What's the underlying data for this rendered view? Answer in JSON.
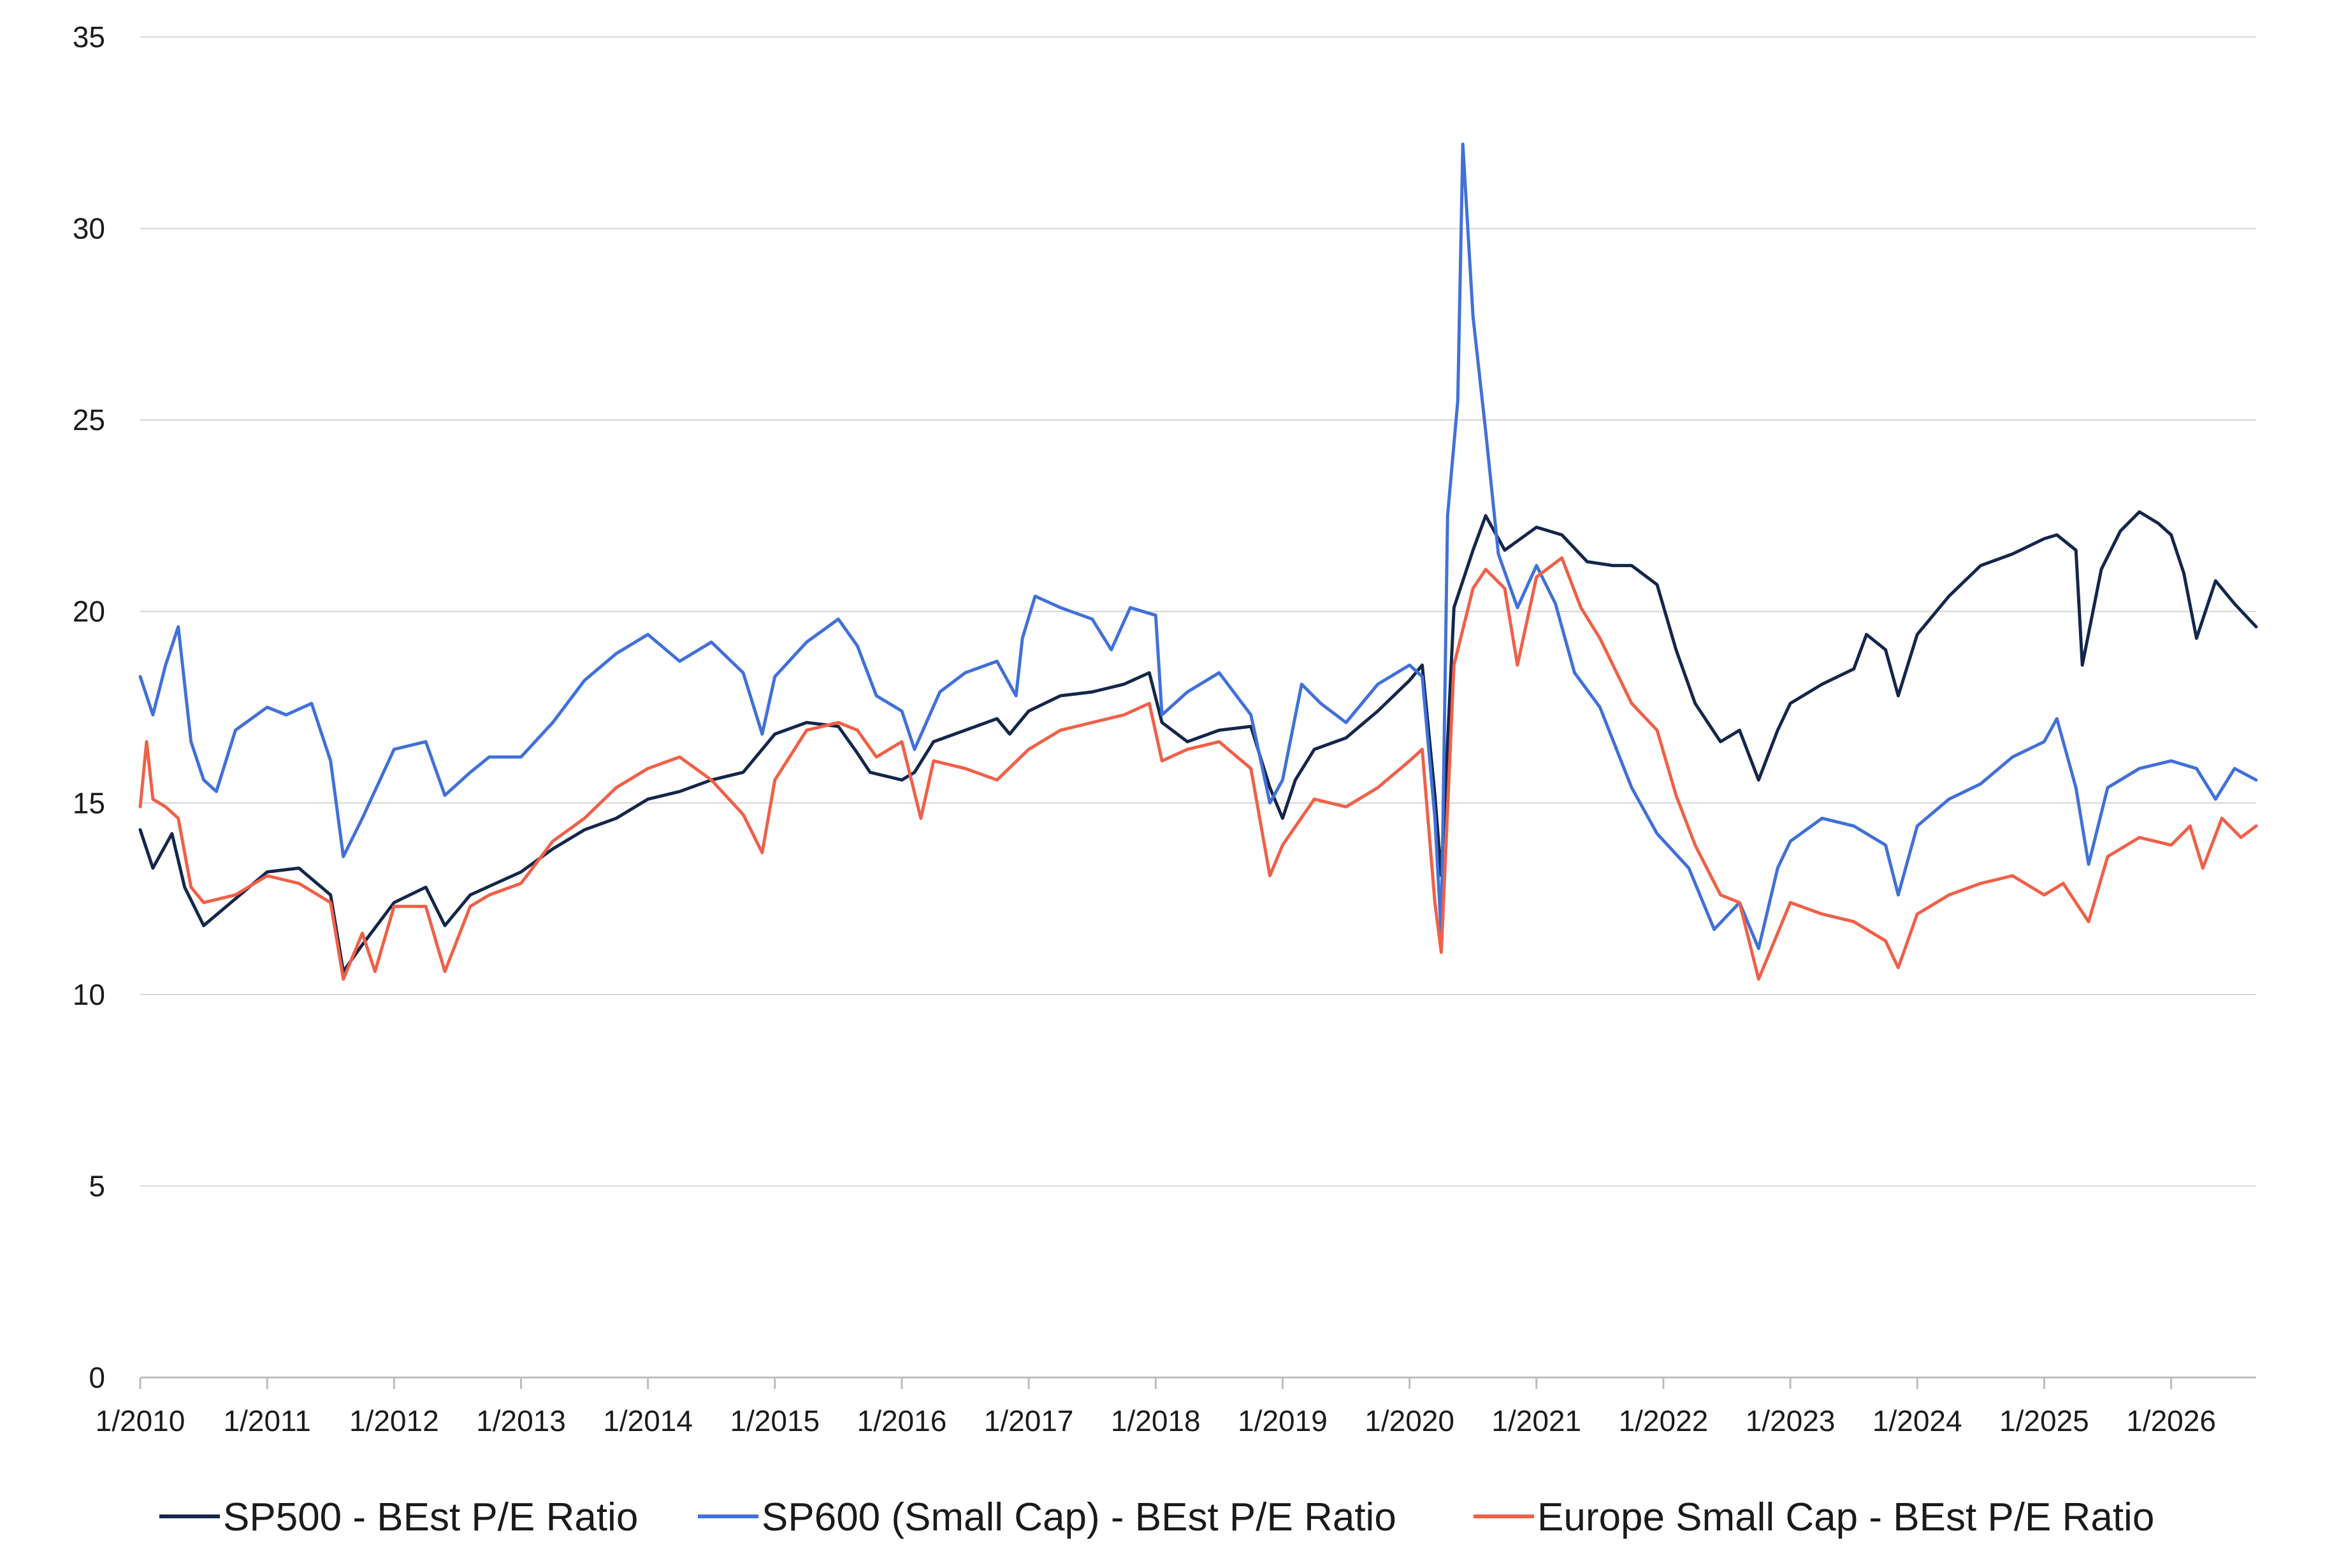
{
  "chart_data": {
    "type": "line",
    "title": "",
    "xlabel": "",
    "ylabel": "",
    "ylim": [
      0,
      35
    ],
    "yticks": [
      "0",
      "5",
      "10",
      "15",
      "20",
      "25",
      "30",
      "35"
    ],
    "xticks": [
      "1/2010",
      "1/2011",
      "1/2012",
      "1/2013",
      "1/2014",
      "1/2015",
      "1/2016",
      "1/2017",
      "1/2018",
      "1/2019",
      "1/2020",
      "1/2021",
      "1/2022",
      "1/2023",
      "1/2024",
      "1/2025",
      "1/2026"
    ],
    "x_range": [
      2010.0,
      2026.67
    ],
    "grid": "horizontal",
    "legend_position": "bottom",
    "series": [
      {
        "name": "SP500 - BEst P/E Ratio",
        "color": "#14264a",
        "points": [
          [
            2010.0,
            14.3
          ],
          [
            2010.1,
            13.3
          ],
          [
            2010.25,
            14.2
          ],
          [
            2010.35,
            12.8
          ],
          [
            2010.5,
            11.8
          ],
          [
            2010.75,
            12.5
          ],
          [
            2011.0,
            13.2
          ],
          [
            2011.25,
            13.3
          ],
          [
            2011.5,
            12.6
          ],
          [
            2011.6,
            10.6
          ],
          [
            2011.75,
            11.3
          ],
          [
            2012.0,
            12.4
          ],
          [
            2012.25,
            12.8
          ],
          [
            2012.4,
            11.8
          ],
          [
            2012.6,
            12.6
          ],
          [
            2013.0,
            13.2
          ],
          [
            2013.25,
            13.8
          ],
          [
            2013.5,
            14.3
          ],
          [
            2013.75,
            14.6
          ],
          [
            2014.0,
            15.1
          ],
          [
            2014.25,
            15.3
          ],
          [
            2014.5,
            15.6
          ],
          [
            2014.75,
            15.8
          ],
          [
            2015.0,
            16.8
          ],
          [
            2015.25,
            17.1
          ],
          [
            2015.5,
            17.0
          ],
          [
            2015.65,
            16.3
          ],
          [
            2015.75,
            15.8
          ],
          [
            2016.0,
            15.6
          ],
          [
            2016.1,
            15.8
          ],
          [
            2016.25,
            16.6
          ],
          [
            2016.5,
            16.9
          ],
          [
            2016.75,
            17.2
          ],
          [
            2016.85,
            16.8
          ],
          [
            2017.0,
            17.4
          ],
          [
            2017.25,
            17.8
          ],
          [
            2017.5,
            17.9
          ],
          [
            2017.75,
            18.1
          ],
          [
            2017.95,
            18.4
          ],
          [
            2018.05,
            17.1
          ],
          [
            2018.25,
            16.6
          ],
          [
            2018.5,
            16.9
          ],
          [
            2018.75,
            17.0
          ],
          [
            2018.9,
            15.4
          ],
          [
            2019.0,
            14.6
          ],
          [
            2019.1,
            15.6
          ],
          [
            2019.25,
            16.4
          ],
          [
            2019.5,
            16.7
          ],
          [
            2019.75,
            17.4
          ],
          [
            2020.0,
            18.2
          ],
          [
            2020.1,
            18.6
          ],
          [
            2020.2,
            15.2
          ],
          [
            2020.25,
            13.1
          ],
          [
            2020.35,
            20.1
          ],
          [
            2020.5,
            21.6
          ],
          [
            2020.6,
            22.5
          ],
          [
            2020.75,
            21.6
          ],
          [
            2021.0,
            22.2
          ],
          [
            2021.2,
            22.0
          ],
          [
            2021.4,
            21.3
          ],
          [
            2021.6,
            21.2
          ],
          [
            2021.75,
            21.2
          ],
          [
            2021.95,
            20.7
          ],
          [
            2022.1,
            19.0
          ],
          [
            2022.25,
            17.6
          ],
          [
            2022.45,
            16.6
          ],
          [
            2022.6,
            16.9
          ],
          [
            2022.75,
            15.6
          ],
          [
            2022.9,
            16.9
          ],
          [
            2023.0,
            17.6
          ],
          [
            2023.25,
            18.1
          ],
          [
            2023.5,
            18.5
          ],
          [
            2023.6,
            19.4
          ],
          [
            2023.75,
            19.0
          ],
          [
            2023.85,
            17.8
          ],
          [
            2024.0,
            19.4
          ],
          [
            2024.25,
            20.4
          ],
          [
            2024.5,
            21.2
          ],
          [
            2024.75,
            21.5
          ],
          [
            2025.0,
            21.9
          ],
          [
            2025.1,
            22.0
          ],
          [
            2025.25,
            21.6
          ],
          [
            2025.3,
            18.6
          ],
          [
            2025.45,
            21.1
          ],
          [
            2025.6,
            22.1
          ],
          [
            2025.75,
            22.6
          ],
          [
            2025.9,
            22.3
          ],
          [
            2026.0,
            22.0
          ],
          [
            2026.1,
            21.0
          ],
          [
            2026.2,
            19.3
          ],
          [
            2026.35,
            20.8
          ],
          [
            2026.5,
            20.2
          ],
          [
            2026.67,
            19.6
          ]
        ]
      },
      {
        "name": "SP600 (Small Cap) - BEst P/E Ratio",
        "color": "#4170d9",
        "points": [
          [
            2010.0,
            18.3
          ],
          [
            2010.1,
            17.3
          ],
          [
            2010.2,
            18.6
          ],
          [
            2010.3,
            19.6
          ],
          [
            2010.4,
            16.6
          ],
          [
            2010.5,
            15.6
          ],
          [
            2010.6,
            15.3
          ],
          [
            2010.75,
            16.9
          ],
          [
            2011.0,
            17.5
          ],
          [
            2011.15,
            17.3
          ],
          [
            2011.35,
            17.6
          ],
          [
            2011.5,
            16.1
          ],
          [
            2011.6,
            13.6
          ],
          [
            2011.75,
            14.6
          ],
          [
            2012.0,
            16.4
          ],
          [
            2012.25,
            16.6
          ],
          [
            2012.4,
            15.2
          ],
          [
            2012.6,
            15.8
          ],
          [
            2012.75,
            16.2
          ],
          [
            2013.0,
            16.2
          ],
          [
            2013.25,
            17.1
          ],
          [
            2013.5,
            18.2
          ],
          [
            2013.75,
            18.9
          ],
          [
            2014.0,
            19.4
          ],
          [
            2014.25,
            18.7
          ],
          [
            2014.5,
            19.2
          ],
          [
            2014.75,
            18.4
          ],
          [
            2014.9,
            16.8
          ],
          [
            2015.0,
            18.3
          ],
          [
            2015.25,
            19.2
          ],
          [
            2015.5,
            19.8
          ],
          [
            2015.65,
            19.1
          ],
          [
            2015.8,
            17.8
          ],
          [
            2016.0,
            17.4
          ],
          [
            2016.1,
            16.4
          ],
          [
            2016.3,
            17.9
          ],
          [
            2016.5,
            18.4
          ],
          [
            2016.75,
            18.7
          ],
          [
            2016.9,
            17.8
          ],
          [
            2016.95,
            19.3
          ],
          [
            2017.05,
            20.4
          ],
          [
            2017.25,
            20.1
          ],
          [
            2017.5,
            19.8
          ],
          [
            2017.65,
            19.0
          ],
          [
            2017.8,
            20.1
          ],
          [
            2018.0,
            19.9
          ],
          [
            2018.05,
            17.3
          ],
          [
            2018.25,
            17.9
          ],
          [
            2018.5,
            18.4
          ],
          [
            2018.75,
            17.3
          ],
          [
            2018.9,
            15.0
          ],
          [
            2019.0,
            15.6
          ],
          [
            2019.15,
            18.1
          ],
          [
            2019.3,
            17.6
          ],
          [
            2019.5,
            17.1
          ],
          [
            2019.75,
            18.1
          ],
          [
            2020.0,
            18.6
          ],
          [
            2020.1,
            18.3
          ],
          [
            2020.2,
            14.6
          ],
          [
            2020.25,
            11.6
          ],
          [
            2020.3,
            22.5
          ],
          [
            2020.38,
            25.5
          ],
          [
            2020.42,
            32.2
          ],
          [
            2020.5,
            27.7
          ],
          [
            2020.6,
            24.7
          ],
          [
            2020.7,
            21.5
          ],
          [
            2020.85,
            20.1
          ],
          [
            2021.0,
            21.2
          ],
          [
            2021.15,
            20.2
          ],
          [
            2021.3,
            18.4
          ],
          [
            2021.5,
            17.5
          ],
          [
            2021.75,
            15.4
          ],
          [
            2021.95,
            14.2
          ],
          [
            2022.2,
            13.3
          ],
          [
            2022.4,
            11.7
          ],
          [
            2022.6,
            12.4
          ],
          [
            2022.75,
            11.2
          ],
          [
            2022.9,
            13.3
          ],
          [
            2023.0,
            14.0
          ],
          [
            2023.25,
            14.6
          ],
          [
            2023.5,
            14.4
          ],
          [
            2023.75,
            13.9
          ],
          [
            2023.85,
            12.6
          ],
          [
            2024.0,
            14.4
          ],
          [
            2024.25,
            15.1
          ],
          [
            2024.5,
            15.5
          ],
          [
            2024.75,
            16.2
          ],
          [
            2025.0,
            16.6
          ],
          [
            2025.1,
            17.2
          ],
          [
            2025.25,
            15.4
          ],
          [
            2025.35,
            13.4
          ],
          [
            2025.5,
            15.4
          ],
          [
            2025.75,
            15.9
          ],
          [
            2026.0,
            16.1
          ],
          [
            2026.2,
            15.9
          ],
          [
            2026.35,
            15.1
          ],
          [
            2026.5,
            15.9
          ],
          [
            2026.67,
            15.6
          ]
        ]
      },
      {
        "name": "Europe Small Cap - BEst P/E Ratio",
        "color": "#f06048",
        "points": [
          [
            2010.0,
            14.9
          ],
          [
            2010.05,
            16.6
          ],
          [
            2010.1,
            15.1
          ],
          [
            2010.2,
            14.9
          ],
          [
            2010.3,
            14.6
          ],
          [
            2010.4,
            12.8
          ],
          [
            2010.5,
            12.4
          ],
          [
            2010.75,
            12.6
          ],
          [
            2011.0,
            13.1
          ],
          [
            2011.25,
            12.9
          ],
          [
            2011.5,
            12.4
          ],
          [
            2011.6,
            10.4
          ],
          [
            2011.75,
            11.6
          ],
          [
            2011.85,
            10.6
          ],
          [
            2012.0,
            12.3
          ],
          [
            2012.25,
            12.3
          ],
          [
            2012.4,
            10.6
          ],
          [
            2012.6,
            12.3
          ],
          [
            2012.75,
            12.6
          ],
          [
            2013.0,
            12.9
          ],
          [
            2013.25,
            14.0
          ],
          [
            2013.5,
            14.6
          ],
          [
            2013.75,
            15.4
          ],
          [
            2014.0,
            15.9
          ],
          [
            2014.25,
            16.2
          ],
          [
            2014.5,
            15.6
          ],
          [
            2014.75,
            14.7
          ],
          [
            2014.9,
            13.7
          ],
          [
            2015.0,
            15.6
          ],
          [
            2015.25,
            16.9
          ],
          [
            2015.5,
            17.1
          ],
          [
            2015.65,
            16.9
          ],
          [
            2015.8,
            16.2
          ],
          [
            2016.0,
            16.6
          ],
          [
            2016.15,
            14.6
          ],
          [
            2016.25,
            16.1
          ],
          [
            2016.5,
            15.9
          ],
          [
            2016.75,
            15.6
          ],
          [
            2017.0,
            16.4
          ],
          [
            2017.25,
            16.9
          ],
          [
            2017.5,
            17.1
          ],
          [
            2017.75,
            17.3
          ],
          [
            2017.95,
            17.6
          ],
          [
            2018.05,
            16.1
          ],
          [
            2018.25,
            16.4
          ],
          [
            2018.5,
            16.6
          ],
          [
            2018.75,
            15.9
          ],
          [
            2018.9,
            13.1
          ],
          [
            2019.0,
            13.9
          ],
          [
            2019.25,
            15.1
          ],
          [
            2019.5,
            14.9
          ],
          [
            2019.75,
            15.4
          ],
          [
            2020.0,
            16.1
          ],
          [
            2020.1,
            16.4
          ],
          [
            2020.2,
            12.4
          ],
          [
            2020.25,
            11.1
          ],
          [
            2020.35,
            18.6
          ],
          [
            2020.5,
            20.6
          ],
          [
            2020.6,
            21.1
          ],
          [
            2020.75,
            20.6
          ],
          [
            2020.85,
            18.6
          ],
          [
            2021.0,
            20.9
          ],
          [
            2021.2,
            21.4
          ],
          [
            2021.35,
            20.1
          ],
          [
            2021.5,
            19.3
          ],
          [
            2021.75,
            17.6
          ],
          [
            2021.95,
            16.9
          ],
          [
            2022.1,
            15.2
          ],
          [
            2022.25,
            13.9
          ],
          [
            2022.45,
            12.6
          ],
          [
            2022.6,
            12.4
          ],
          [
            2022.75,
            10.4
          ],
          [
            2022.9,
            11.6
          ],
          [
            2023.0,
            12.4
          ],
          [
            2023.25,
            12.1
          ],
          [
            2023.5,
            11.9
          ],
          [
            2023.75,
            11.4
          ],
          [
            2023.85,
            10.7
          ],
          [
            2024.0,
            12.1
          ],
          [
            2024.25,
            12.6
          ],
          [
            2024.5,
            12.9
          ],
          [
            2024.75,
            13.1
          ],
          [
            2025.0,
            12.6
          ],
          [
            2025.15,
            12.9
          ],
          [
            2025.25,
            12.4
          ],
          [
            2025.35,
            11.9
          ],
          [
            2025.5,
            13.6
          ],
          [
            2025.75,
            14.1
          ],
          [
            2026.0,
            13.9
          ],
          [
            2026.15,
            14.4
          ],
          [
            2026.25,
            13.3
          ],
          [
            2026.4,
            14.6
          ],
          [
            2026.55,
            14.1
          ],
          [
            2026.67,
            14.4
          ]
        ]
      }
    ]
  }
}
